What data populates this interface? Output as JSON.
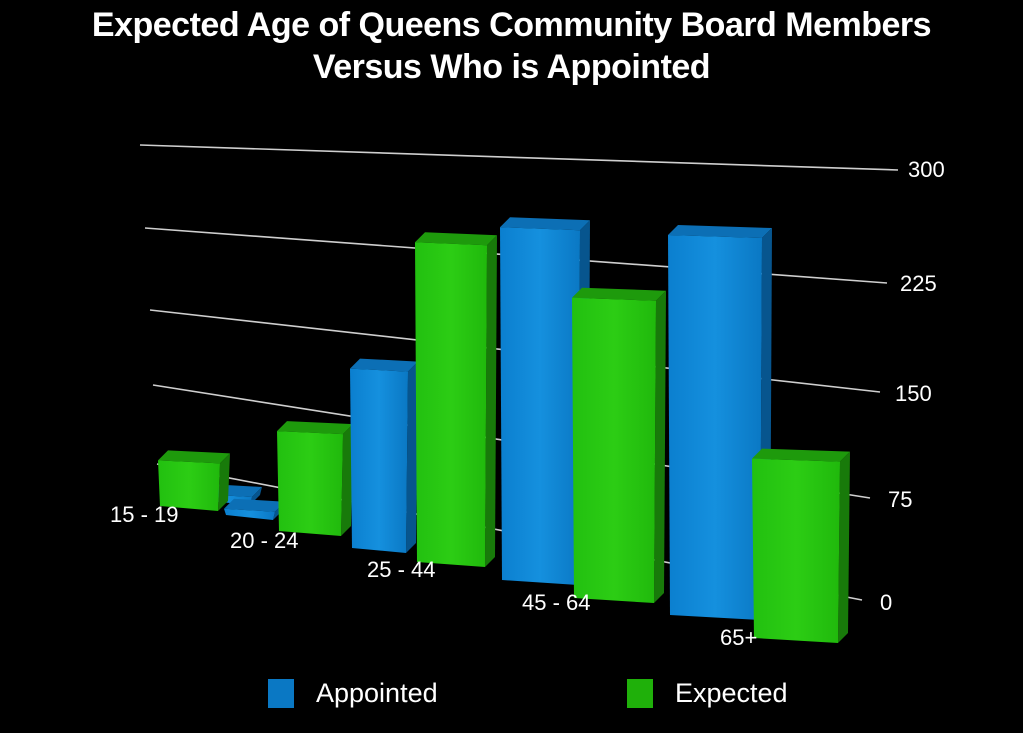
{
  "title_line1": "Expected Age of Queens Community Board Members",
  "title_line2": "Versus Who is Appointed",
  "colors": {
    "appointed": "#0a82d2",
    "expected": "#22c30c",
    "background": "#000000",
    "grid": "#cccccc"
  },
  "axis": {
    "ticks": [
      "300",
      "225",
      "150",
      "75",
      "0"
    ]
  },
  "categories": [
    "15 - 19",
    "20 - 24",
    "25 - 44",
    "45 - 64",
    "65+"
  ],
  "legend": {
    "appointed": "Appointed",
    "expected": "Expected"
  },
  "chart_data": {
    "type": "bar",
    "title": "Expected Age of Queens Community Board Members Versus Who is Appointed",
    "categories": [
      "15 - 19",
      "20 - 24",
      "25 - 44",
      "45 - 64",
      "65+"
    ],
    "series": [
      {
        "name": "Appointed",
        "color": "#0a82d2",
        "values": [
          0,
          5,
          130,
          252,
          255
        ]
      },
      {
        "name": "Expected",
        "color": "#22c30c",
        "values": [
          38,
          78,
          230,
          210,
          115
        ]
      }
    ],
    "xlabel": "",
    "ylabel": "",
    "ylim": [
      0,
      300
    ],
    "yticks": [
      0,
      75,
      150,
      225,
      300
    ],
    "grid": true,
    "legend_position": "bottom",
    "style": "3d-perspective"
  }
}
